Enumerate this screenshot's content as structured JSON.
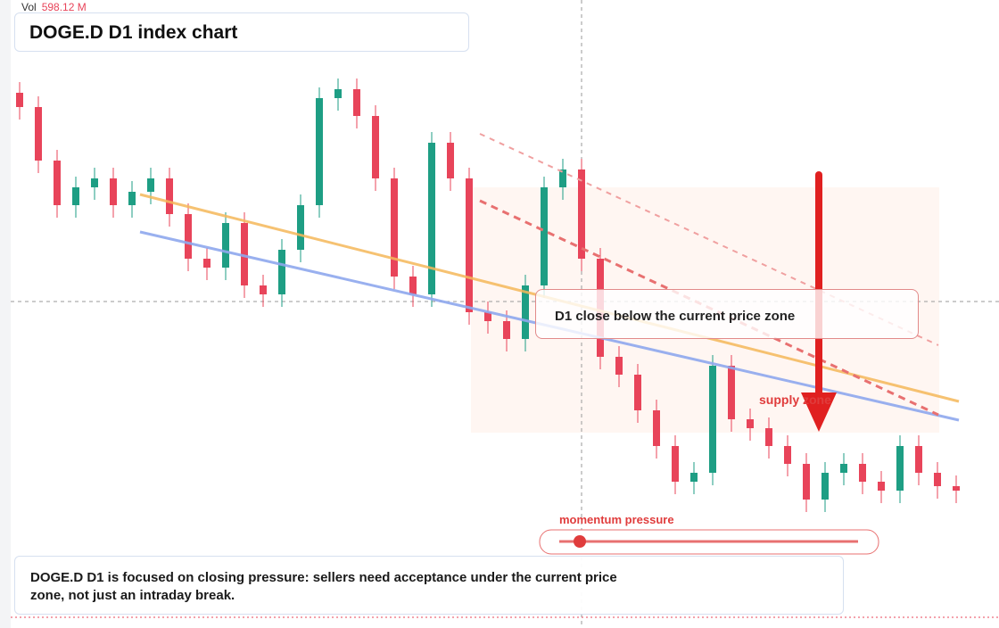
{
  "header": {
    "volume_label": "Vol",
    "volume_value": "598.12 M"
  },
  "annotations": {
    "zone_callout": "D1 close below the current price zone",
    "supply_zone": "supply zone",
    "momentum": "momentum pressure",
    "description": "DOGE.D D1 is focused on closing pressure: sellers need acceptance under the current price zone, not just an intraday break."
  },
  "chart_data": {
    "type": "candlestick",
    "title": "DOGE.D D1 index chart",
    "ylim": [
      0,
      704
    ],
    "up_color": "#1e9e84",
    "down_color": "#e8445a",
    "candles": [
      [
        600,
        612,
        570,
        584
      ],
      [
        584,
        596,
        510,
        524
      ],
      [
        524,
        536,
        460,
        474
      ],
      [
        474,
        506,
        460,
        494
      ],
      [
        494,
        516,
        480,
        504
      ],
      [
        504,
        516,
        460,
        474
      ],
      [
        474,
        501,
        460,
        489
      ],
      [
        489,
        516,
        475,
        504
      ],
      [
        504,
        516,
        450,
        464
      ],
      [
        464,
        476,
        400,
        414
      ],
      [
        414,
        426,
        390,
        404
      ],
      [
        404,
        466,
        390,
        454
      ],
      [
        454,
        466,
        370,
        384
      ],
      [
        384,
        396,
        360,
        374
      ],
      [
        374,
        436,
        360,
        424
      ],
      [
        424,
        486,
        410,
        474
      ],
      [
        474,
        606,
        460,
        594
      ],
      [
        594,
        616,
        580,
        604
      ],
      [
        604,
        616,
        560,
        574
      ],
      [
        574,
        586,
        490,
        504
      ],
      [
        504,
        516,
        380,
        394
      ],
      [
        394,
        406,
        360,
        374
      ],
      [
        374,
        556,
        360,
        544
      ],
      [
        544,
        556,
        490,
        504
      ],
      [
        504,
        516,
        340,
        354
      ],
      [
        354,
        366,
        330,
        344
      ],
      [
        344,
        356,
        310,
        324
      ],
      [
        324,
        396,
        310,
        384
      ],
      [
        384,
        506,
        370,
        494
      ],
      [
        494,
        526,
        480,
        514
      ],
      [
        514,
        526,
        400,
        414
      ],
      [
        414,
        426,
        290,
        304
      ],
      [
        304,
        316,
        270,
        284
      ],
      [
        284,
        296,
        230,
        244
      ],
      [
        244,
        256,
        190,
        204
      ],
      [
        204,
        216,
        150,
        164
      ],
      [
        164,
        186,
        150,
        174
      ],
      [
        174,
        306,
        160,
        294
      ],
      [
        294,
        306,
        220,
        234
      ],
      [
        234,
        246,
        210,
        224
      ],
      [
        224,
        236,
        190,
        204
      ],
      [
        204,
        216,
        170,
        184
      ],
      [
        184,
        196,
        130,
        144
      ],
      [
        144,
        186,
        130,
        174
      ],
      [
        174,
        196,
        160,
        184
      ],
      [
        184,
        196,
        150,
        164
      ],
      [
        164,
        176,
        140,
        154
      ],
      [
        154,
        216,
        140,
        204
      ],
      [
        204,
        216,
        160,
        174
      ],
      [
        174,
        186,
        145,
        159
      ],
      [
        159,
        171,
        140,
        154
      ]
    ]
  }
}
